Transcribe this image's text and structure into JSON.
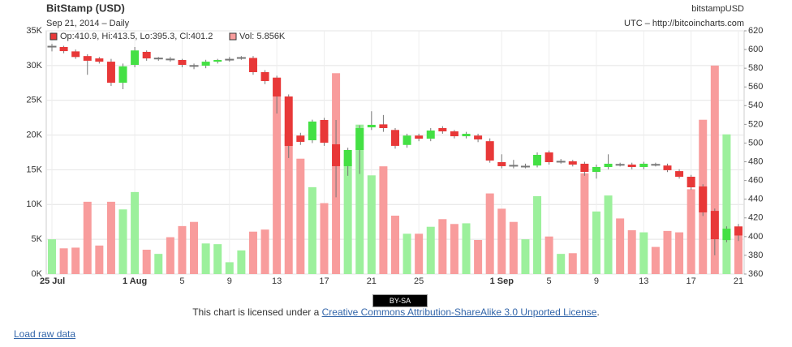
{
  "chart_data": {
    "type": "candlestick",
    "title": "BitStamp (USD)",
    "subtitle": "Sep 21, 2014 – Daily",
    "source_name": "bitstampUSD",
    "source_url": "UTC – http://bitcoincharts.com",
    "ohlc_label": "Op:410.9, Hi:413.5, Lo:395.3, Cl:401.2",
    "volume_label": "Vol: 5.856K",
    "categories": [
      "25 Jul",
      null,
      null,
      null,
      null,
      null,
      null,
      "1 Aug",
      null,
      null,
      null,
      "5",
      null,
      null,
      null,
      "9",
      null,
      null,
      null,
      "13",
      null,
      null,
      null,
      "17",
      null,
      null,
      null,
      "21",
      null,
      null,
      null,
      "25",
      null,
      null,
      null,
      null,
      null,
      null,
      "1 Sep",
      null,
      null,
      null,
      "5",
      null,
      null,
      null,
      "9",
      null,
      null,
      null,
      "13",
      null,
      null,
      null,
      "17",
      null,
      null,
      null,
      "21"
    ],
    "open": [
      603,
      602.7,
      598,
      593,
      590.5,
      587,
      564.5,
      583.6,
      597.5,
      590.5,
      589.8,
      588.8,
      582.9,
      582.7,
      587,
      589.4,
      591.2,
      591,
      575.8,
      569.7,
      549.8,
      508,
      503,
      524.7,
      498.7,
      475.3,
      492.6,
      516.8,
      520,
      514,
      498,
      508,
      504.7,
      516,
      512.5,
      507.3,
      508,
      502,
      479.6,
      476.2,
      475.1,
      476,
      490,
      480.3,
      480.5,
      477.9,
      469.2,
      474.4,
      477.2,
      477,
      474.4,
      477.2,
      476,
      470,
      464,
      453.6,
      427.5,
      396.3,
      410.9
    ],
    "high": [
      606,
      604,
      600,
      595,
      592,
      590,
      585,
      602.7,
      599,
      592,
      592,
      590,
      585,
      589,
      590,
      592,
      593,
      593,
      578,
      572,
      552,
      511,
      525,
      527,
      524.7,
      495,
      519,
      534,
      530,
      516,
      510,
      510,
      516,
      518,
      514,
      512,
      510,
      505,
      488,
      482,
      478,
      490,
      492,
      483,
      482,
      480,
      477,
      488,
      479,
      479,
      480,
      479,
      478,
      472,
      466,
      456,
      430,
      411,
      413.5
    ],
    "low": [
      598,
      596,
      590,
      573,
      585,
      561,
      557.6,
      581,
      588,
      588,
      587,
      581,
      579,
      580,
      585,
      587,
      589,
      573,
      563,
      531.6,
      484,
      498,
      500,
      497,
      442,
      465,
      467,
      514,
      512,
      494,
      495,
      502,
      502,
      510,
      505,
      505,
      501,
      479,
      473,
      473,
      473,
      474,
      477,
      478,
      475,
      465,
      462,
      472,
      475,
      472,
      472,
      475,
      469,
      462,
      450,
      422,
      380,
      394,
      395.3
    ],
    "close": [
      603.5,
      598.3,
      592,
      588,
      587,
      564.5,
      582,
      599,
      590.5,
      590.8,
      589.6,
      583.6,
      582.7,
      587,
      588.8,
      589.6,
      591.4,
      575.8,
      566.3,
      549.8,
      496.9,
      501.3,
      523,
      500.4,
      475.3,
      492.6,
      516,
      519.5,
      516,
      497,
      508,
      504.7,
      513.4,
      512.5,
      507.3,
      509.9,
      503.9,
      481.3,
      475.3,
      476,
      475.3,
      487.4,
      479.6,
      480.5,
      477,
      469.2,
      474.4,
      477.9,
      477,
      474.4,
      477.9,
      477,
      471,
      464,
      452.7,
      425.9,
      397.2,
      408.5,
      401.2
    ],
    "volume": [
      5000,
      3700,
      3800,
      10400,
      4100,
      10400,
      9300,
      11800,
      3500,
      2900,
      5300,
      6900,
      7500,
      4400,
      4300,
      1700,
      3400,
      6100,
      6400,
      28300,
      20200,
      16600,
      12500,
      10200,
      28900,
      16500,
      21500,
      14200,
      15500,
      8400,
      5800,
      5800,
      6800,
      7900,
      7200,
      7300,
      4900,
      11600,
      9400,
      7500,
      5000,
      11200,
      5400,
      2900,
      3000,
      14500,
      9000,
      11300,
      8000,
      6300,
      6000,
      3900,
      6200,
      6000,
      12200,
      22200,
      30000,
      20100,
      5856
    ],
    "up_color": "#44e044",
    "down_color": "#e83838",
    "volume_up_color": "#9cf09c",
    "volume_down_color": "#f89c9c",
    "ylim": [
      0,
      35000
    ],
    "yticks": [
      {
        "value": 0,
        "label": "0K"
      },
      {
        "value": 5000,
        "label": "5K"
      },
      {
        "value": 10000,
        "label": "10K"
      },
      {
        "value": 15000,
        "label": "15K"
      },
      {
        "value": 20000,
        "label": "20K"
      },
      {
        "value": 25000,
        "label": "25K"
      },
      {
        "value": 30000,
        "label": "30K"
      },
      {
        "value": 35000,
        "label": "35K"
      }
    ],
    "y2lim": [
      360,
      620
    ],
    "y2ticks": [
      360,
      380,
      400,
      420,
      440,
      460,
      480,
      500,
      520,
      540,
      560,
      580,
      600,
      620
    ],
    "grid": true
  },
  "footer": {
    "license_badge": "BY-SA",
    "license_text": "This chart is licensed under a ",
    "license_link": "Creative Commons Attribution-ShareAlike 3.0 Unported License",
    "license_end": ".",
    "raw_link": "Load raw data"
  }
}
